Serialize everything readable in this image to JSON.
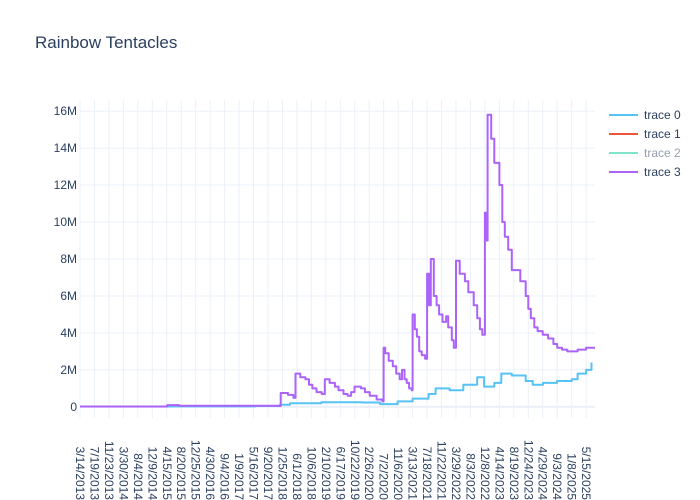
{
  "chart_data": {
    "type": "line",
    "title": "Rainbow Tentacles",
    "xlabel": "",
    "ylabel": "",
    "ylim": [
      -600000,
      16600000
    ],
    "yticks": [
      0,
      2000000,
      4000000,
      6000000,
      8000000,
      10000000,
      12000000,
      14000000,
      16000000
    ],
    "ytick_labels": [
      "0",
      "2M",
      "4M",
      "6M",
      "8M",
      "10M",
      "12M",
      "14M",
      "16M"
    ],
    "xrange": [
      "2013-03-14",
      "2025-08-01"
    ],
    "xticks": [
      "2013-03-14",
      "2013-07-19",
      "2013-11-23",
      "2014-03-30",
      "2014-08-04",
      "2014-12-09",
      "2015-04-15",
      "2015-08-20",
      "2015-12-25",
      "2016-04-30",
      "2016-09-04",
      "2017-01-09",
      "2017-05-16",
      "2017-09-20",
      "2018-01-25",
      "2018-06-01",
      "2018-10-06",
      "2019-02-10",
      "2019-06-17",
      "2019-10-22",
      "2020-02-26",
      "2020-07-02",
      "2020-11-06",
      "2021-03-13",
      "2021-07-18",
      "2021-11-22",
      "2022-03-29",
      "2022-08-03",
      "2022-12-08",
      "2023-04-14",
      "2023-08-19",
      "2023-12-24",
      "2024-04-29",
      "2024-09-03",
      "2025-01-08",
      "2025-05-15"
    ],
    "xtick_labels": [
      "3/14/2013",
      "7/19/2013",
      "11/23/2013",
      "3/30/2014",
      "8/4/2014",
      "12/9/2014",
      "4/15/2015",
      "8/20/2015",
      "12/25/2015",
      "4/30/2016",
      "9/4/2016",
      "1/9/2017",
      "5/16/2017",
      "9/20/2017",
      "1/25/2018",
      "6/1/2018",
      "10/6/2018",
      "2/10/2019",
      "6/17/2019",
      "10/22/2019",
      "2/26/2020",
      "7/2/2020",
      "11/6/2020",
      "3/13/2021",
      "7/18/2021",
      "11/22/2021",
      "3/29/2022",
      "8/3/2022",
      "12/8/2022",
      "4/14/2023",
      "8/19/2023",
      "12/24/2023",
      "4/29/2024",
      "9/3/2024",
      "1/8/2025",
      "5/15/2025"
    ],
    "grid": true,
    "legend_position": "top-right",
    "series": [
      {
        "name": "trace 0",
        "color": "#57c2f5",
        "visible": true,
        "points": [
          [
            "2013-03-14",
            20000
          ],
          [
            "2015-06-01",
            30000
          ],
          [
            "2017-06-01",
            50000
          ],
          [
            "2018-01-01",
            120000
          ],
          [
            "2018-04-01",
            200000
          ],
          [
            "2019-01-01",
            250000
          ],
          [
            "2020-01-01",
            240000
          ],
          [
            "2020-06-01",
            150000
          ],
          [
            "2020-11-01",
            300000
          ],
          [
            "2021-03-13",
            450000
          ],
          [
            "2021-08-01",
            700000
          ],
          [
            "2021-10-01",
            1000000
          ],
          [
            "2022-02-01",
            900000
          ],
          [
            "2022-06-01",
            1200000
          ],
          [
            "2022-10-01",
            1600000
          ],
          [
            "2022-12-01",
            1100000
          ],
          [
            "2023-03-01",
            1300000
          ],
          [
            "2023-05-01",
            1800000
          ],
          [
            "2023-08-01",
            1700000
          ],
          [
            "2023-12-01",
            1400000
          ],
          [
            "2024-02-01",
            1200000
          ],
          [
            "2024-05-01",
            1300000
          ],
          [
            "2024-09-01",
            1400000
          ],
          [
            "2025-01-08",
            1500000
          ],
          [
            "2025-03-01",
            1800000
          ],
          [
            "2025-05-15",
            2000000
          ],
          [
            "2025-07-01",
            2400000
          ]
        ]
      },
      {
        "name": "trace 1",
        "color": "#ef553b",
        "visible": true,
        "points": []
      },
      {
        "name": "trace 2",
        "color": "#00cc96",
        "visible": false,
        "points": []
      },
      {
        "name": "trace 3",
        "color": "#ab63fa",
        "visible": true,
        "points": [
          [
            "2013-03-14",
            20000
          ],
          [
            "2015-04-15",
            20000
          ],
          [
            "2015-04-20",
            100000
          ],
          [
            "2015-08-01",
            60000
          ],
          [
            "2017-12-15",
            50000
          ],
          [
            "2018-01-10",
            750000
          ],
          [
            "2018-03-15",
            650000
          ],
          [
            "2018-05-01",
            500000
          ],
          [
            "2018-05-20",
            1800000
          ],
          [
            "2018-07-01",
            1600000
          ],
          [
            "2018-08-15",
            1500000
          ],
          [
            "2018-09-15",
            1200000
          ],
          [
            "2018-10-15",
            1000000
          ],
          [
            "2018-11-20",
            800000
          ],
          [
            "2019-01-05",
            700000
          ],
          [
            "2019-02-01",
            1500000
          ],
          [
            "2019-03-15",
            1300000
          ],
          [
            "2019-05-01",
            1100000
          ],
          [
            "2019-06-01",
            900000
          ],
          [
            "2019-07-15",
            700000
          ],
          [
            "2019-08-20",
            600000
          ],
          [
            "2019-09-20",
            800000
          ],
          [
            "2019-10-20",
            1100000
          ],
          [
            "2019-12-15",
            1000000
          ],
          [
            "2020-01-20",
            800000
          ],
          [
            "2020-03-01",
            600000
          ],
          [
            "2020-05-01",
            400000
          ],
          [
            "2020-06-20",
            300000
          ],
          [
            "2020-07-01",
            3200000
          ],
          [
            "2020-07-15",
            2900000
          ],
          [
            "2020-08-15",
            2500000
          ],
          [
            "2020-09-20",
            2200000
          ],
          [
            "2020-10-20",
            1800000
          ],
          [
            "2020-11-20",
            1500000
          ],
          [
            "2020-12-10",
            2000000
          ],
          [
            "2021-01-01",
            1500000
          ],
          [
            "2021-01-20",
            1300000
          ],
          [
            "2021-02-10",
            1000000
          ],
          [
            "2021-03-05",
            900000
          ],
          [
            "2021-03-13",
            5000000
          ],
          [
            "2021-04-01",
            4200000
          ],
          [
            "2021-04-20",
            3800000
          ],
          [
            "2021-05-10",
            3000000
          ],
          [
            "2021-06-01",
            2800000
          ],
          [
            "2021-07-01",
            2600000
          ],
          [
            "2021-07-18",
            7200000
          ],
          [
            "2021-08-05",
            5500000
          ],
          [
            "2021-08-20",
            8000000
          ],
          [
            "2021-09-15",
            6000000
          ],
          [
            "2021-10-10",
            5500000
          ],
          [
            "2021-11-01",
            5000000
          ],
          [
            "2021-12-01",
            4600000
          ],
          [
            "2022-01-01",
            4900000
          ],
          [
            "2022-01-20",
            4300000
          ],
          [
            "2022-02-20",
            3600000
          ],
          [
            "2022-03-10",
            3200000
          ],
          [
            "2022-03-29",
            7900000
          ],
          [
            "2022-05-01",
            7200000
          ],
          [
            "2022-06-15",
            6800000
          ],
          [
            "2022-07-15",
            6200000
          ],
          [
            "2022-09-01",
            5500000
          ],
          [
            "2022-10-01",
            4800000
          ],
          [
            "2022-10-25",
            4200000
          ],
          [
            "2022-11-15",
            3900000
          ],
          [
            "2022-12-08",
            10500000
          ],
          [
            "2022-12-20",
            9000000
          ],
          [
            "2023-01-01",
            15800000
          ],
          [
            "2023-02-01",
            14500000
          ],
          [
            "2023-03-01",
            13200000
          ],
          [
            "2023-04-14",
            12000000
          ],
          [
            "2023-05-10",
            10000000
          ],
          [
            "2023-06-01",
            9200000
          ],
          [
            "2023-07-01",
            8500000
          ],
          [
            "2023-08-01",
            7400000
          ],
          [
            "2023-10-15",
            6800000
          ],
          [
            "2023-12-01",
            6000000
          ],
          [
            "2023-12-24",
            5300000
          ],
          [
            "2024-01-15",
            4800000
          ],
          [
            "2024-02-15",
            4300000
          ],
          [
            "2024-03-15",
            4100000
          ],
          [
            "2024-04-29",
            3900000
          ],
          [
            "2024-06-15",
            3700000
          ],
          [
            "2024-08-01",
            3400000
          ],
          [
            "2024-09-03",
            3200000
          ],
          [
            "2024-10-15",
            3100000
          ],
          [
            "2024-12-01",
            3000000
          ],
          [
            "2025-01-08",
            3000000
          ],
          [
            "2025-03-01",
            3100000
          ],
          [
            "2025-05-15",
            3200000
          ],
          [
            "2025-08-01",
            3200000
          ]
        ]
      }
    ]
  }
}
